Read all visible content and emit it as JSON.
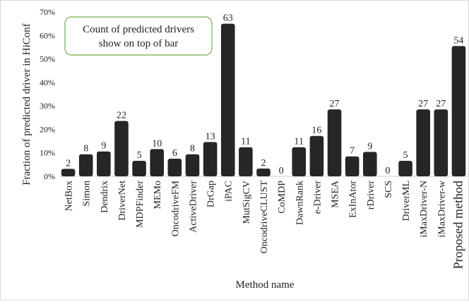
{
  "chart_data": {
    "type": "bar",
    "categories": [
      "NetBox",
      "Simon",
      "Dendrix",
      "DriverNet",
      "MDPFinder",
      "MEMo",
      "OncodriveFM",
      "ActiveDriver",
      "DrGap",
      "iPAC",
      "MutSigCV",
      "OncodriveCLUST",
      "CoMDP",
      "DawnRank",
      "e-Driver",
      "MSEA",
      "ExInAtor",
      "rDriver",
      "SCS",
      "DriverML",
      "iMaxDriver-N",
      "iMaxDriver-w",
      "Proposed method"
    ],
    "values": [
      0.032,
      0.094,
      0.106,
      0.236,
      0.066,
      0.116,
      0.075,
      0.094,
      0.146,
      0.65,
      0.124,
      0.033,
      0.0,
      0.124,
      0.172,
      0.285,
      0.085,
      0.104,
      0.0,
      0.066,
      0.285,
      0.285,
      0.555
    ],
    "data_labels": [
      "2",
      "8",
      "9",
      "22",
      "5",
      "10",
      "6",
      "8",
      "13",
      "63",
      "11",
      "2",
      "0",
      "11",
      "16",
      "27",
      "7",
      "9",
      "0",
      "5",
      "27",
      "27",
      "54"
    ],
    "xlabel": "Method name",
    "ylabel": "Fraction of predicted driver in HiConf",
    "ylim": [
      0,
      0.7
    ],
    "yticks": [
      "0%",
      "10%",
      "20%",
      "30%",
      "40%",
      "50%",
      "60%",
      "70%"
    ],
    "grid": false,
    "bar_color": "#262626",
    "annotation": "Count of predicted drivers show on top of bar",
    "annotation_border_color": "#70ad47"
  }
}
